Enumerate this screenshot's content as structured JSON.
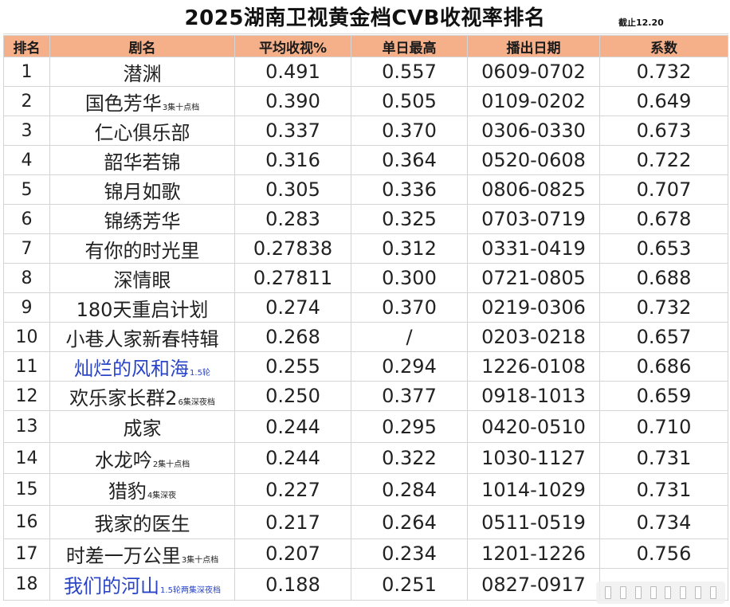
{
  "title": "2025湖南卫视黄金档CVB收视率排名",
  "as_of": "截止12.20",
  "headers": [
    "排名",
    "剧名",
    "平均收视%",
    "单日最高",
    "播出日期",
    "系数"
  ],
  "rows": [
    {
      "rank": "1",
      "name": "潜渊",
      "note": "",
      "avg": "0.491",
      "peak": "0.557",
      "dates": "0609-0702",
      "coef": "0.732"
    },
    {
      "rank": "2",
      "name": "国色芳华",
      "note": "3集十点档",
      "avg": "0.390",
      "peak": "0.505",
      "dates": "0109-0202",
      "coef": "0.649"
    },
    {
      "rank": "3",
      "name": "仁心俱乐部",
      "note": "",
      "avg": "0.337",
      "peak": "0.370",
      "dates": "0306-0330",
      "coef": "0.673"
    },
    {
      "rank": "4",
      "name": "韶华若锦",
      "note": "",
      "avg": "0.316",
      "peak": "0.364",
      "dates": "0520-0608",
      "coef": "0.722"
    },
    {
      "rank": "5",
      "name": "锦月如歌",
      "note": "",
      "avg": "0.305",
      "peak": "0.336",
      "dates": "0806-0825",
      "coef": "0.707"
    },
    {
      "rank": "6",
      "name": "锦绣芳华",
      "note": "",
      "avg": "0.283",
      "peak": "0.325",
      "dates": "0703-0719",
      "coef": "0.678"
    },
    {
      "rank": "7",
      "name": "有你的时光里",
      "note": "",
      "avg": "0.27838",
      "peak": "0.312",
      "dates": "0331-0419",
      "coef": "0.653"
    },
    {
      "rank": "8",
      "name": "深情眼",
      "note": "",
      "avg": "0.27811",
      "peak": "0.300",
      "dates": "0721-0805",
      "coef": "0.688"
    },
    {
      "rank": "9",
      "name": "180天重启计划",
      "note": "",
      "avg": "0.274",
      "peak": "0.370",
      "dates": "0219-0306",
      "coef": "0.732"
    },
    {
      "rank": "10",
      "name": "小巷人家新春特辑",
      "note": "",
      "avg": "0.268",
      "peak": "/",
      "dates": "0203-0218",
      "coef": "0.657"
    },
    {
      "rank": "11",
      "name": "灿烂的风和海",
      "note": "1.5轮",
      "avg": "0.255",
      "peak": "0.294",
      "dates": "1226-0108",
      "coef": "0.686"
    },
    {
      "rank": "12",
      "name": "欢乐家长群2",
      "note": "6集深夜档",
      "avg": "0.250",
      "peak": "0.377",
      "dates": "0918-1013",
      "coef": "0.659"
    },
    {
      "rank": "13",
      "name": "成家",
      "note": "",
      "avg": "0.244",
      "peak": "0.295",
      "dates": "0420-0510",
      "coef": "0.710"
    },
    {
      "rank": "14",
      "name": "水龙吟",
      "note": "2集十点档",
      "avg": "0.244",
      "peak": "0.322",
      "dates": "1030-1127",
      "coef": "0.731"
    },
    {
      "rank": "15",
      "name": "猎豹",
      "note": "4集深夜",
      "avg": "0.227",
      "peak": "0.284",
      "dates": "1014-1029",
      "coef": "0.731"
    },
    {
      "rank": "16",
      "name": "我家的医生",
      "note": "",
      "avg": "0.217",
      "peak": "0.264",
      "dates": "0511-0519",
      "coef": "0.734"
    },
    {
      "rank": "17",
      "name": "时差一万公里",
      "note": "3集十点档",
      "avg": "0.207",
      "peak": "0.234",
      "dates": "1201-1226",
      "coef": "0.756"
    },
    {
      "rank": "18",
      "name": "我们的河山",
      "note": "1.5轮两集深夜档",
      "avg": "0.188",
      "peak": "0.251",
      "dates": "0827-0917",
      "coef": ""
    }
  ],
  "colors": {
    "header_bg": "#f5b08a",
    "highlight_text": "#2a44c8",
    "grid": "#d4d4d4"
  },
  "watermark_icon": "weibo-watermark-icon"
}
